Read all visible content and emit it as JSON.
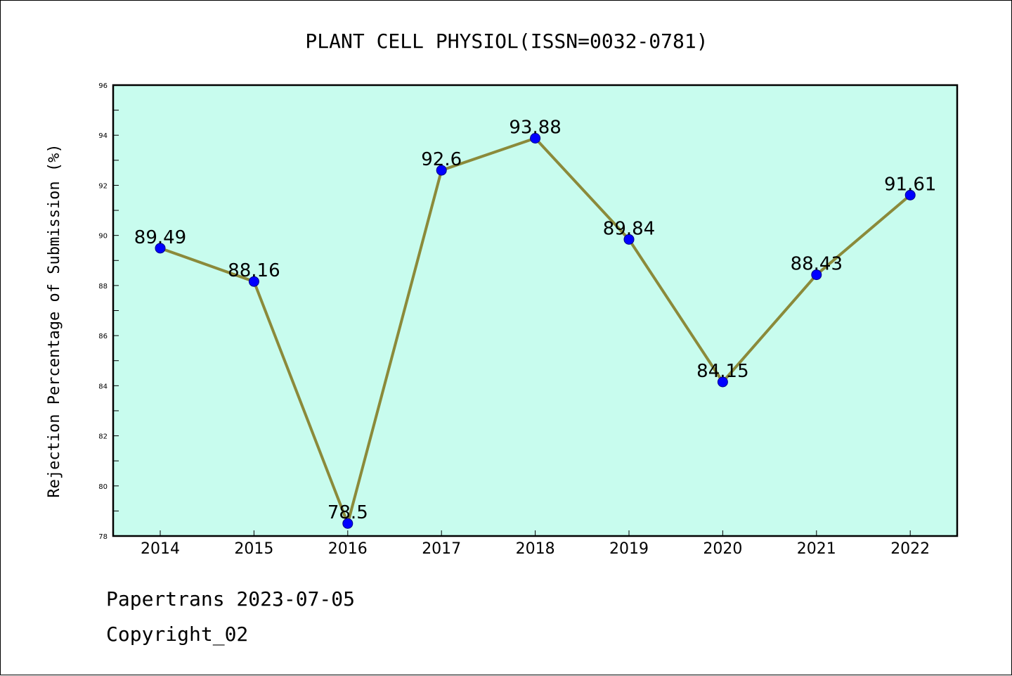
{
  "colors": {
    "plot_background": "#c8fcee",
    "line": "#8b8a3a",
    "marker": "#0000ff",
    "axis": "#000000"
  },
  "footer": {
    "line1": "Papertrans 2023-07-05",
    "line2": "Copyright_02"
  },
  "chart_data": {
    "type": "line",
    "title": "PLANT CELL PHYSIOL(ISSN=0032-0781)",
    "xlabel": "",
    "ylabel": "Rejection Percentage of Submission (%)",
    "x": [
      "2014",
      "2015",
      "2016",
      "2017",
      "2018",
      "2019",
      "2020",
      "2021",
      "2022"
    ],
    "series": [
      {
        "values": [
          89.49,
          88.16,
          78.5,
          92.6,
          93.88,
          89.84,
          84.15,
          88.43,
          91.61
        ],
        "labels": [
          "89.49",
          "88.16",
          "78.5",
          "92.6",
          "93.88",
          "89.84",
          "84.15",
          "88.43",
          "91.61"
        ]
      }
    ],
    "ylim": [
      78,
      96
    ],
    "yticks": [
      "78",
      "80",
      "82",
      "84",
      "86",
      "88",
      "90",
      "92",
      "94",
      "96"
    ],
    "grid": false,
    "legend": false
  }
}
